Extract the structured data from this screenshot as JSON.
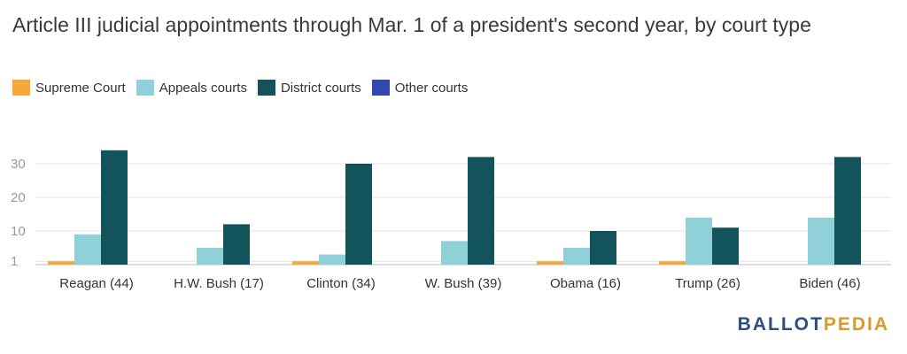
{
  "chart_data": {
    "type": "bar",
    "title": "Article III judicial appointments through Mar. 1 of a president's second year, by court type",
    "categories": [
      "Reagan (44)",
      "H.W. Bush (17)",
      "Clinton (34)",
      "W. Bush (39)",
      "Obama (16)",
      "Trump (26)",
      "Biden (46)"
    ],
    "series": [
      {
        "name": "Supreme Court",
        "color": "#f5a93a",
        "values": [
          1,
          0,
          1,
          0,
          1,
          1,
          0
        ]
      },
      {
        "name": "Appeals courts",
        "color": "#8fd0d9",
        "values": [
          9,
          5,
          3,
          7,
          5,
          14,
          14
        ]
      },
      {
        "name": "District courts",
        "color": "#13545c",
        "values": [
          34,
          12,
          30,
          32,
          10,
          11,
          32
        ]
      },
      {
        "name": "Other courts",
        "color": "#3347b0",
        "values": [
          0,
          0,
          0,
          0,
          0,
          0,
          0
        ]
      }
    ],
    "y_ticks": [
      1,
      10,
      20,
      30
    ],
    "ylim": [
      0,
      34
    ],
    "grid": true,
    "legend_position": "top-left"
  },
  "branding": {
    "part1": "BALLOT",
    "part2": "PEDIA"
  }
}
